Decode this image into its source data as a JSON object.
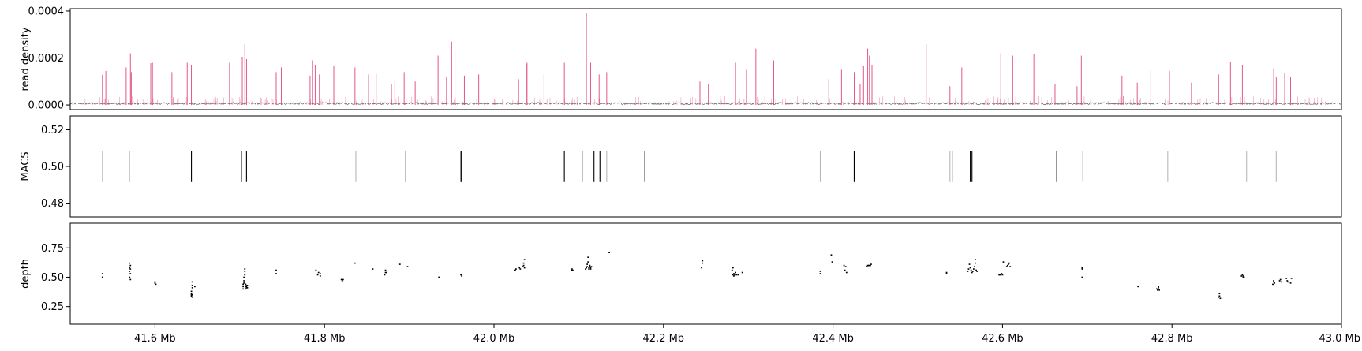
{
  "chart_data": [
    {
      "type": "line",
      "ylabel": "read density",
      "ylim": [
        -2e-05,
        0.00041
      ],
      "yticks": [
        "0.0000",
        "0.0002",
        "0.0004"
      ],
      "ytick_values": [
        0,
        0.0002,
        0.0004
      ],
      "xlim": [
        41.5,
        43.0
      ],
      "x_unit": "Mb",
      "series": [
        {
          "color": "#e0457b",
          "style": "vertical-spikes",
          "x": [
            41.538,
            41.542,
            41.566,
            41.571,
            41.572,
            41.595,
            41.597,
            41.62,
            41.638,
            41.643,
            41.688,
            41.703,
            41.706,
            41.708,
            41.743,
            41.749,
            41.783,
            41.786,
            41.789,
            41.794,
            41.811,
            41.836,
            41.852,
            41.861,
            41.879,
            41.883,
            41.894,
            41.907,
            41.934,
            41.944,
            41.95,
            41.954,
            41.965,
            41.982,
            42.029,
            42.038,
            42.039,
            42.059,
            42.083,
            42.109,
            42.114,
            42.124,
            42.133,
            42.183,
            42.243,
            42.253,
            42.285,
            42.298,
            42.309,
            42.33,
            42.395,
            42.41,
            42.425,
            42.432,
            42.436,
            42.441,
            42.443,
            42.446,
            42.51,
            42.538,
            42.552,
            42.598,
            42.612,
            42.637,
            42.662,
            42.688,
            42.693,
            42.741,
            42.759,
            42.775,
            42.797,
            42.823,
            42.855,
            42.869,
            42.883,
            42.92,
            42.923,
            42.933,
            42.94
          ],
          "values": [
            0.000128,
            0.000145,
            0.00016,
            0.00022,
            0.00014,
            0.000178,
            0.00018,
            0.00014,
            0.00018,
            0.00017,
            0.00018,
            0.000205,
            0.00026,
            0.000195,
            0.00014,
            0.00016,
            0.000125,
            0.00019,
            0.00017,
            0.00013,
            0.000165,
            0.00016,
            0.00013,
            0.000133,
            9e-05,
            0.0001,
            0.00014,
            0.0001,
            0.00021,
            0.00012,
            0.00027,
            0.000235,
            0.000125,
            0.00013,
            0.00011,
            0.000175,
            0.00018,
            0.00013,
            0.00018,
            0.00039,
            0.00018,
            0.00013,
            0.00014,
            0.00021,
            0.0001,
            9e-05,
            0.00018,
            0.00015,
            0.00024,
            0.00019,
            0.00011,
            0.00015,
            0.00014,
            9e-05,
            0.000165,
            0.00024,
            0.00021,
            0.00017,
            0.00026,
            8e-05,
            0.00016,
            0.00022,
            0.00021,
            0.000215,
            9e-05,
            8e-05,
            0.00021,
            0.000125,
            9.5e-05,
            0.000145,
            0.000145,
            9.5e-05,
            0.00013,
            0.000185,
            0.00017,
            0.000155,
            0.00012,
            0.000135,
            0.00012
          ]
        },
        {
          "color": "#111111",
          "style": "background-noise",
          "level": 6e-06
        }
      ]
    },
    {
      "type": "scatter",
      "ylabel": "MACS",
      "ylim": [
        0.4725,
        0.5275
      ],
      "yticks": [
        "0.48",
        "0.50",
        "0.52"
      ],
      "ytick_values": [
        0.48,
        0.5,
        0.52
      ],
      "xlim": [
        41.5,
        43.0
      ],
      "x_unit": "Mb",
      "marker": "vertical-line",
      "y_center": 0.5,
      "y_half_height": 0.0085,
      "series": [
        {
          "shade": "light",
          "color": "#b8b8b8",
          "x": [
            41.538,
            41.57,
            41.837,
            42.385,
            42.133,
            42.538,
            42.541,
            42.795,
            42.888,
            42.923
          ]
        },
        {
          "shade": "dark",
          "color": "#000000",
          "x": [
            41.643,
            41.702,
            41.708,
            41.896,
            41.961,
            41.962,
            42.083,
            42.104,
            42.118,
            42.125,
            42.178,
            42.425,
            42.562,
            42.564,
            42.664,
            42.695
          ]
        }
      ]
    },
    {
      "type": "scatter",
      "ylabel": "depth",
      "ylim": [
        0.1,
        0.96
      ],
      "yticks": [
        "0.25",
        "0.50",
        "0.75"
      ],
      "ytick_values": [
        0.25,
        0.5,
        0.75
      ],
      "xlim": [
        41.5,
        43.0
      ],
      "x_unit": "Mb",
      "marker": "dot",
      "color": "#000000",
      "series": [
        {
          "x": [
            41.538,
            41.538,
            41.57,
            41.57,
            41.57,
            41.57,
            41.571,
            41.571,
            41.571,
            41.571,
            41.6,
            41.6,
            41.601,
            41.643,
            41.643,
            41.643,
            41.643,
            41.644,
            41.644,
            41.644,
            41.644,
            41.644,
            41.647,
            41.704,
            41.704,
            41.704,
            41.705,
            41.705,
            41.705,
            41.706,
            41.706,
            41.706,
            41.707,
            41.707,
            41.707,
            41.708,
            41.708,
            41.708,
            41.709,
            41.709,
            41.743,
            41.743,
            41.79,
            41.792,
            41.793,
            41.795,
            41.795,
            41.82,
            41.821,
            41.822,
            41.836,
            41.857,
            41.871,
            41.872,
            41.872,
            41.873,
            41.889,
            41.898,
            41.935,
            41.961,
            41.962,
            42.025,
            42.026,
            42.03,
            42.031,
            42.034,
            42.035,
            42.035,
            42.036,
            42.036,
            42.092,
            42.092,
            42.093,
            42.108,
            42.109,
            42.11,
            42.11,
            42.111,
            42.111,
            42.112,
            42.112,
            42.113,
            42.113,
            42.114,
            42.114,
            42.115,
            42.136,
            42.245,
            42.246,
            42.246,
            42.281,
            42.282,
            42.282,
            42.283,
            42.283,
            42.284,
            42.285,
            42.286,
            42.288,
            42.293,
            42.385,
            42.385,
            42.398,
            42.399,
            42.413,
            42.414,
            42.415,
            42.416,
            42.44,
            42.441,
            42.442,
            42.443,
            42.444,
            42.445,
            42.534,
            42.534,
            42.559,
            42.56,
            42.561,
            42.562,
            42.563,
            42.564,
            42.565,
            42.566,
            42.567,
            42.568,
            42.568,
            42.569,
            42.57,
            42.596,
            42.597,
            42.598,
            42.599,
            42.6,
            42.601,
            42.605,
            42.606,
            42.607,
            42.608,
            42.609,
            42.694,
            42.694,
            42.694,
            42.76,
            42.782,
            42.783,
            42.784,
            42.784,
            42.785,
            42.855,
            42.856,
            42.856,
            42.857,
            42.882,
            42.883,
            42.884,
            42.884,
            42.885,
            42.919,
            42.92,
            42.92,
            42.921,
            42.927,
            42.928,
            42.929,
            42.935,
            42.936,
            42.937,
            42.94,
            42.941
          ],
          "values": [
            0.53,
            0.5,
            0.62,
            0.58,
            0.55,
            0.5,
            0.48,
            0.53,
            0.57,
            0.6,
            0.46,
            0.45,
            0.44,
            0.34,
            0.35,
            0.36,
            0.38,
            0.41,
            0.43,
            0.46,
            0.33,
            0.35,
            0.42,
            0.4,
            0.42,
            0.44,
            0.45,
            0.47,
            0.5,
            0.52,
            0.55,
            0.57,
            0.4,
            0.42,
            0.44,
            0.41,
            0.43,
            0.42,
            0.41,
            0.43,
            0.56,
            0.53,
            0.56,
            0.52,
            0.54,
            0.51,
            0.53,
            0.48,
            0.47,
            0.48,
            0.62,
            0.57,
            0.52,
            0.54,
            0.56,
            0.54,
            0.61,
            0.59,
            0.5,
            0.52,
            0.51,
            0.56,
            0.57,
            0.58,
            0.57,
            0.59,
            0.6,
            0.62,
            0.65,
            0.58,
            0.56,
            0.57,
            0.56,
            0.57,
            0.58,
            0.59,
            0.61,
            0.63,
            0.67,
            0.57,
            0.58,
            0.59,
            0.6,
            0.58,
            0.57,
            0.59,
            0.71,
            0.58,
            0.62,
            0.64,
            0.56,
            0.58,
            0.52,
            0.53,
            0.51,
            0.52,
            0.54,
            0.52,
            0.52,
            0.54,
            0.55,
            0.53,
            0.69,
            0.63,
            0.6,
            0.56,
            0.59,
            0.54,
            0.59,
            0.6,
            0.6,
            0.6,
            0.6,
            0.61,
            0.53,
            0.54,
            0.55,
            0.57,
            0.61,
            0.58,
            0.56,
            0.54,
            0.55,
            0.57,
            0.59,
            0.65,
            0.62,
            0.56,
            0.55,
            0.52,
            0.52,
            0.52,
            0.53,
            0.52,
            0.63,
            0.59,
            0.6,
            0.61,
            0.62,
            0.59,
            0.58,
            0.57,
            0.5,
            0.42,
            0.4,
            0.39,
            0.41,
            0.42,
            0.39,
            0.33,
            0.34,
            0.36,
            0.32,
            0.51,
            0.52,
            0.5,
            0.51,
            0.5,
            0.44,
            0.46,
            0.47,
            0.45,
            0.47,
            0.48,
            0.46,
            0.49,
            0.47,
            0.46,
            0.45,
            0.49
          ],
          "name": ""
        }
      ]
    }
  ],
  "x_axis": {
    "tick_values": [
      41.6,
      41.8,
      42.0,
      42.2,
      42.4,
      42.6,
      42.8,
      43.0
    ],
    "tick_labels": [
      "41.6 Mb",
      "41.8 Mb",
      "42.0 Mb",
      "42.2 Mb",
      "42.4 Mb",
      "42.6 Mb",
      "42.8 Mb",
      "43.0 Mb"
    ]
  }
}
